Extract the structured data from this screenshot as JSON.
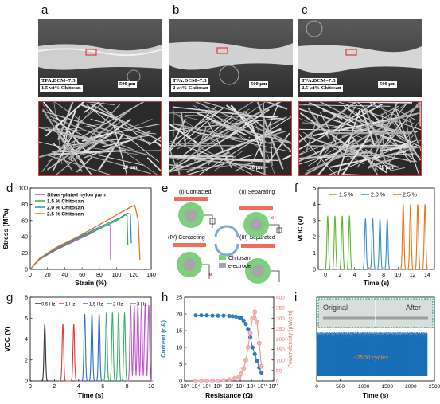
{
  "panel_letters": {
    "a": "a",
    "b": "b",
    "c": "c",
    "d": "d",
    "e": "e",
    "f": "f",
    "g": "g",
    "h": "h",
    "i": "i"
  },
  "sem": [
    {
      "ratio": "TFA:DCM=7:3",
      "chitosan": "1.5 wt% Chitosan",
      "scale": "500 μm",
      "zoom_scale": "20 μm"
    },
    {
      "ratio": "TFA:DCM=7:3",
      "chitosan": "2 wt% Chitosan",
      "scale": "500 μm",
      "zoom_scale": "20 μm"
    },
    {
      "ratio": "TFA:DCM=7:3",
      "chitosan": "2.5 wt% Chitosan",
      "scale": "500 μm",
      "zoom_scale": "20 μm"
    }
  ],
  "schematic": {
    "step1": "(I) Contacted",
    "step2": "(II) Separating",
    "step3": "(III) Separated",
    "step4": "(IV) Contacting",
    "legend_chitosan": "Chitosan",
    "legend_electrode": "electrode",
    "electron": "e⁻",
    "colors": {
      "chitosan": "#7ed07e",
      "electrode": "#a6a6a6",
      "plate": "#f26b5b"
    }
  },
  "chart_data": [
    {
      "id": "d",
      "type": "line",
      "xlabel": "Strain (%)",
      "ylabel": "Stress (MPa)",
      "xlim": [
        0,
        140
      ],
      "ylim": [
        0,
        100
      ],
      "xticks": [
        0,
        20,
        40,
        60,
        80,
        100,
        120,
        140
      ],
      "yticks": [
        0,
        20,
        40,
        60,
        80,
        100
      ],
      "series": [
        {
          "name": "Silver-plated nylon yarn",
          "color": "#b04ad0",
          "x": [
            0,
            10,
            30,
            50,
            70,
            85,
            93,
            93
          ],
          "y": [
            0,
            12,
            24,
            34,
            44,
            53,
            54,
            12
          ]
        },
        {
          "name": "1.5 % Chitosan",
          "color": "#3aaf3a",
          "x": [
            0,
            10,
            30,
            55,
            80,
            100,
            110,
            112,
            113
          ],
          "y": [
            0,
            12,
            25,
            38,
            50,
            60,
            67,
            66,
            30
          ]
        },
        {
          "name": "2.0 % Chitosan",
          "color": "#2a8fc9",
          "x": [
            0,
            10,
            30,
            55,
            80,
            105,
            112,
            116,
            117
          ],
          "y": [
            0,
            12,
            26,
            39,
            52,
            64,
            69,
            68,
            32
          ]
        },
        {
          "name": "2.5 % Chitosan",
          "color": "#e8741c",
          "x": [
            0,
            10,
            30,
            55,
            80,
            105,
            115,
            121,
            125,
            127
          ],
          "y": [
            0,
            13,
            27,
            40,
            55,
            70,
            76,
            79,
            60,
            12
          ]
        }
      ]
    },
    {
      "id": "f",
      "type": "line",
      "xlabel": "Time (s)",
      "ylabel": "V_OC (V)",
      "xlim": [
        -1,
        15
      ],
      "ylim": [
        0,
        5
      ],
      "xticks": [
        0,
        2,
        4,
        6,
        8,
        10,
        12,
        14
      ],
      "yticks": [
        0,
        1,
        2,
        3,
        4,
        5
      ],
      "series": [
        {
          "name": "1.5 %",
          "color": "#5cb82e",
          "peaks": [
            0.3,
            1.3,
            2.3,
            3.3
          ],
          "amp": 3.3
        },
        {
          "name": "2.0 %",
          "color": "#3a8fd0",
          "peaks": [
            5.5,
            6.5,
            7.5,
            8.5
          ],
          "amp": 3.1
        },
        {
          "name": "2.5 %",
          "color": "#e8741c",
          "peaks": [
            10.7,
            11.7,
            12.7,
            13.7
          ],
          "amp": 4.0
        }
      ]
    },
    {
      "id": "g",
      "type": "line",
      "xlabel": "Time (s)",
      "ylabel": "V_OC (V)",
      "xlim": [
        0,
        10
      ],
      "ylim": [
        0,
        8
      ],
      "xticks": [
        0,
        2,
        4,
        6,
        8,
        10
      ],
      "yticks": [
        0,
        2,
        4,
        6,
        8
      ],
      "series": [
        {
          "name": "0.5 Hz",
          "color": "#333333",
          "peaks": [
            1.2
          ],
          "amp": 5.4
        },
        {
          "name": "1 Hz",
          "color": "#e03a3a",
          "peaks": [
            2.7,
            3.6
          ],
          "amp": 5.4
        },
        {
          "name": "1.5 Hz",
          "color": "#2a6fd0",
          "peaks": [
            4.5,
            5.1,
            5.7
          ],
          "amp": 6.4
        },
        {
          "name": "2 Hz",
          "color": "#3aaf6a",
          "peaks": [
            6.3,
            6.8,
            7.3,
            7.8
          ],
          "amp": 6.5
        },
        {
          "name": "3 Hz",
          "color": "#c05ad0",
          "peaks": [
            8.3,
            8.6,
            8.9,
            9.2,
            9.5,
            9.8
          ],
          "amp": 7.2
        }
      ]
    },
    {
      "id": "h",
      "type": "scatter",
      "xlabel": "Resistance (Ω)",
      "ylabel": "Current (nA)",
      "y2label": "Power density (μW/cm)",
      "xlim_log": [
        3,
        11
      ],
      "ylim": [
        0,
        25
      ],
      "y2lim": [
        0,
        400
      ],
      "xtick_labels": [
        "10³",
        "10⁴",
        "10⁵",
        "10⁶",
        "10⁷",
        "10⁸",
        "10⁹",
        "10¹⁰",
        "10¹¹"
      ],
      "yticks": [
        0,
        5,
        10,
        15,
        20,
        25
      ],
      "y2ticks": [
        0,
        50,
        100,
        150,
        200,
        250,
        300,
        350,
        400
      ],
      "current": {
        "color": "#2a7fc0",
        "logx": [
          4,
          4.5,
          5,
          5.5,
          6,
          6.5,
          7,
          7.3,
          7.6,
          7.9,
          8.1,
          8.3,
          8.5,
          8.7,
          8.9,
          9.1,
          9.3,
          9.5,
          9.7,
          9.9
        ],
        "y": [
          19.6,
          19.6,
          19.6,
          19.5,
          19.5,
          19.5,
          19.4,
          19.3,
          19.2,
          19,
          18.8,
          18,
          17,
          15.5,
          13,
          10,
          8,
          6,
          4,
          2.5
        ]
      },
      "power": {
        "color": "#f08a8a",
        "logx": [
          4,
          4.5,
          5,
          5.5,
          6,
          6.5,
          7,
          7.5,
          7.9,
          8.1,
          8.3,
          8.5,
          8.7,
          8.9,
          9.1,
          9.3,
          9.5,
          9.7,
          9.9
        ],
        "y": [
          0,
          0,
          0,
          0,
          1,
          3,
          6,
          12,
          20,
          35,
          60,
          100,
          160,
          230,
          300,
          330,
          280,
          180,
          70
        ]
      }
    },
    {
      "id": "i",
      "type": "line",
      "xlabel": "Time (s)",
      "xlim": [
        0,
        2500
      ],
      "xticks": [
        0,
        500,
        1000,
        1500,
        2000,
        2500
      ],
      "annotation": "~2500 cycles",
      "color": "#1a6fb8",
      "inset_left": "Original",
      "inset_right": "After"
    }
  ]
}
